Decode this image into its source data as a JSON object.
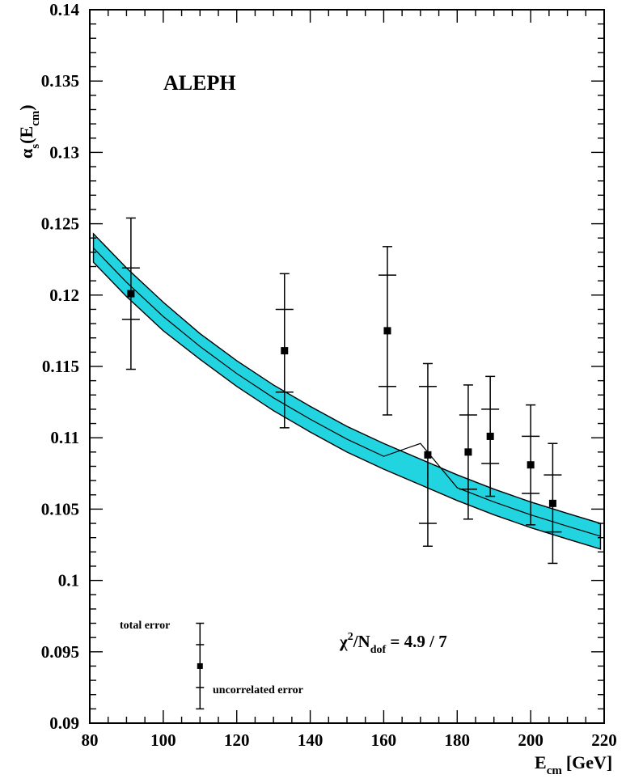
{
  "chart_data": {
    "type": "scatter",
    "title": "ALEPH",
    "xlabel": {
      "main": "E",
      "sub": "cm",
      "unit": "[GeV]"
    },
    "ylabel": {
      "greek": "α",
      "sub": "s",
      "arg": "E",
      "arg_sub": "cm"
    },
    "xlim": [
      80,
      220
    ],
    "ylim": [
      0.09,
      0.14
    ],
    "x_ticks": [
      80,
      100,
      120,
      140,
      160,
      180,
      200,
      220
    ],
    "x_tick_labels": [
      "80",
      "100",
      "120",
      "140",
      "160",
      "180",
      "200",
      "220"
    ],
    "y_ticks": [
      0.09,
      0.095,
      0.1,
      0.105,
      0.11,
      0.115,
      0.12,
      0.125,
      0.13,
      0.135,
      0.14
    ],
    "y_tick_labels": [
      "0.09",
      "0.095",
      "0.1",
      "0.105",
      "0.11",
      "0.115",
      "0.12",
      "0.125",
      "0.13",
      "0.135",
      "0.14"
    ],
    "points": [
      {
        "x": 91.2,
        "y": 0.1201,
        "uncorr": [
          0.1183,
          0.1219
        ],
        "total": [
          0.1148,
          0.1254
        ]
      },
      {
        "x": 133,
        "y": 0.1161,
        "uncorr": [
          0.1132,
          0.119
        ],
        "total": [
          0.1107,
          0.1215
        ]
      },
      {
        "x": 161,
        "y": 0.1175,
        "uncorr": [
          0.1136,
          0.1214
        ],
        "total": [
          0.1116,
          0.1234
        ]
      },
      {
        "x": 172,
        "y": 0.1088,
        "uncorr": [
          0.104,
          0.1136
        ],
        "total": [
          0.1024,
          0.1152
        ]
      },
      {
        "x": 183,
        "y": 0.109,
        "uncorr": [
          0.1064,
          0.1116
        ],
        "total": [
          0.1043,
          0.1137
        ]
      },
      {
        "x": 189,
        "y": 0.1101,
        "uncorr": [
          0.1082,
          0.112
        ],
        "total": [
          0.1059,
          0.1143
        ]
      },
      {
        "x": 200,
        "y": 0.1081,
        "uncorr": [
          0.1061,
          0.1101
        ],
        "total": [
          0.1039,
          0.1123
        ]
      },
      {
        "x": 206,
        "y": 0.1054,
        "uncorr": [
          0.1034,
          0.1074
        ],
        "total": [
          0.1012,
          0.1096
        ]
      }
    ],
    "fit_band": {
      "x": [
        81,
        90,
        100,
        110,
        120,
        130,
        140,
        150,
        160,
        170,
        180,
        190,
        200,
        210,
        219
      ],
      "center": [
        0.1233,
        0.1209,
        0.1185,
        0.1164,
        0.1145,
        0.1128,
        0.1113,
        0.1099,
        0.1087,
        0.1096,
        0.1065,
        0.1055,
        0.1046,
        0.1038,
        0.1031
      ],
      "upper": [
        0.1243,
        0.1219,
        0.1195,
        0.1173,
        0.1154,
        0.1137,
        0.1122,
        0.1108,
        0.1096,
        0.1085,
        0.1074,
        0.1064,
        0.1055,
        0.1047,
        0.104
      ],
      "lower": [
        0.1223,
        0.1199,
        0.1175,
        0.1155,
        0.1136,
        0.1119,
        0.1104,
        0.109,
        0.1078,
        0.1067,
        0.1056,
        0.1046,
        0.1037,
        0.1029,
        0.1022
      ],
      "color": "#22d3e0"
    },
    "legend_point": {
      "x": 110,
      "y": 0.094,
      "uncorr": [
        0.0925,
        0.0955
      ],
      "total": [
        0.091,
        0.097
      ]
    },
    "annotations": {
      "total_error": "total error",
      "uncorrelated_error": "uncorrelated error",
      "chi2_symbol": "χ",
      "chi2_sup": "2",
      "chi2_slash": "/N",
      "chi2_sub": "dof",
      "chi2_value": " = 4.9 / 7"
    }
  }
}
